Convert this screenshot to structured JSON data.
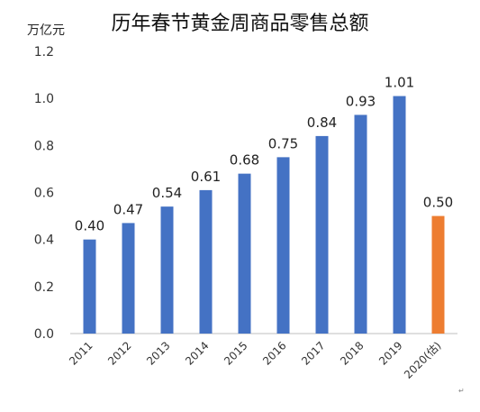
{
  "page": {
    "corner_mark": "↵"
  },
  "chart_data": {
    "type": "bar",
    "title": "历年春节黄金周商品零售总额",
    "ylabel": "万亿元",
    "xlabel": "",
    "categories": [
      "2011",
      "2012",
      "2013",
      "2014",
      "2015",
      "2016",
      "2017",
      "2018",
      "2019",
      "2020(估)"
    ],
    "values": [
      0.4,
      0.47,
      0.54,
      0.61,
      0.68,
      0.75,
      0.84,
      0.93,
      1.01,
      0.5
    ],
    "value_labels": [
      "0.40",
      "0.47",
      "0.54",
      "0.61",
      "0.68",
      "0.75",
      "0.84",
      "0.93",
      "1.01",
      "0.50"
    ],
    "ylim": [
      0,
      1.2
    ],
    "yticks": [
      "0.0",
      "0.2",
      "0.4",
      "0.6",
      "0.8",
      "1.0",
      "1.2"
    ],
    "grid": false,
    "colors": {
      "bar": "#4472c4",
      "highlight": "#ed7d31",
      "axis": "#bfbfbf"
    },
    "highlight_index": 9
  }
}
